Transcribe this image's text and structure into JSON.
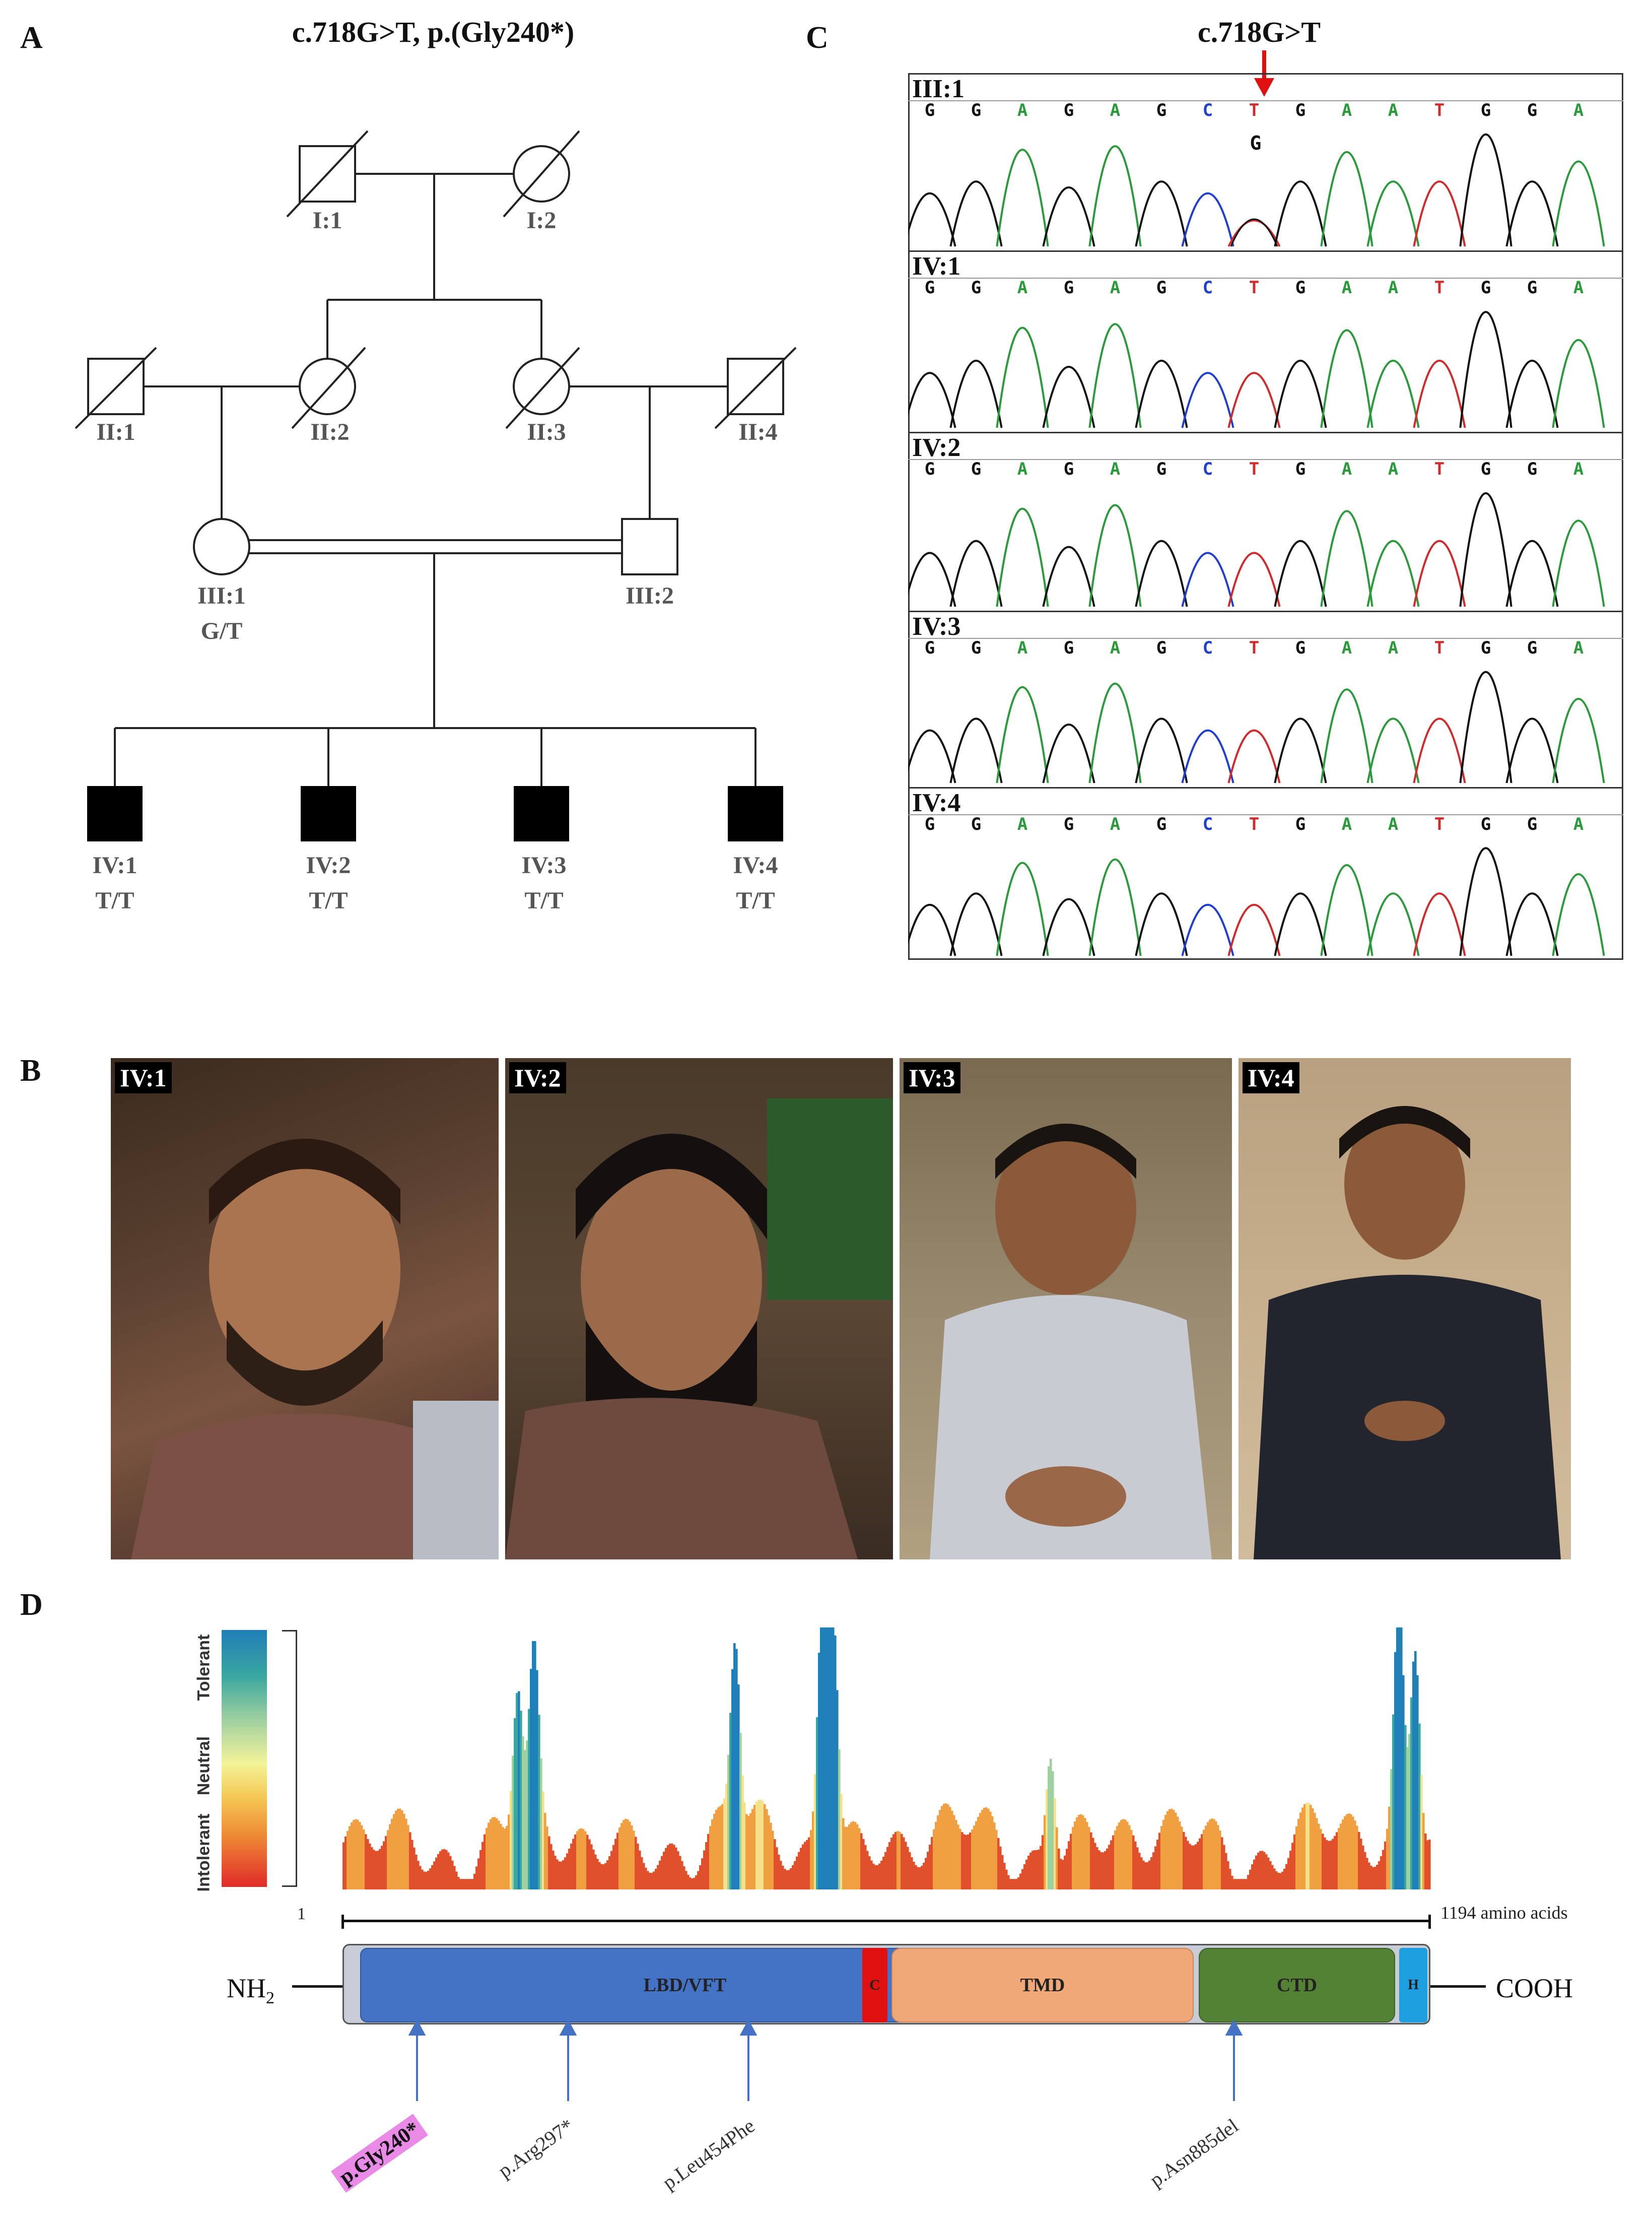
{
  "panels": {
    "a": "A",
    "b": "B",
    "c": "C",
    "d": "D"
  },
  "pedigree": {
    "title": "c.718G>T, p.(Gly240*)",
    "I1": "I:1",
    "I2": "I:2",
    "II1": "II:1",
    "II2": "II:2",
    "II3": "II:3",
    "II4": "II:4",
    "III1": "III:1",
    "III1_gt": "G/T",
    "III2": "III:2",
    "IV1": "IV:1",
    "IV1_gt": "T/T",
    "IV2": "IV:2",
    "IV2_gt": "T/T",
    "IV3": "IV:3",
    "IV3_gt": "T/T",
    "IV4": "IV:4",
    "IV4_gt": "T/T"
  },
  "chromatograms": {
    "title": "c.718G>T",
    "het_base": "G",
    "tracks": [
      {
        "id": "III:1",
        "bases": [
          "G",
          "G",
          "A",
          "G",
          "A",
          "G",
          "C",
          "T",
          "G",
          "A",
          "A",
          "T",
          "G",
          "G",
          "A"
        ]
      },
      {
        "id": "IV:1",
        "bases": [
          "G",
          "G",
          "A",
          "G",
          "A",
          "G",
          "C",
          "T",
          "G",
          "A",
          "A",
          "T",
          "G",
          "G",
          "A"
        ]
      },
      {
        "id": "IV:2",
        "bases": [
          "G",
          "G",
          "A",
          "G",
          "A",
          "G",
          "C",
          "T",
          "G",
          "A",
          "A",
          "T",
          "G",
          "G",
          "A"
        ]
      },
      {
        "id": "IV:3",
        "bases": [
          "G",
          "G",
          "A",
          "G",
          "A",
          "G",
          "C",
          "T",
          "G",
          "A",
          "A",
          "T",
          "G",
          "G",
          "A"
        ]
      },
      {
        "id": "IV:4",
        "bases": [
          "G",
          "G",
          "A",
          "G",
          "A",
          "G",
          "C",
          "T",
          "G",
          "A",
          "A",
          "T",
          "G",
          "G",
          "A"
        ]
      }
    ],
    "base_colors": {
      "A": "#2a9a3a",
      "G": "#111111",
      "C": "#1f3fd0",
      "T": "#d02a2a"
    }
  },
  "photos": {
    "p1": "IV:1",
    "p2": "IV:2",
    "p3": "IV:3",
    "p4": "IV:4"
  },
  "protein": {
    "scale": {
      "tolerant": "Tolerant",
      "neutral": "Neutral",
      "intolerant": "Intolerant"
    },
    "start": "1",
    "end": "1194 amino acids",
    "nterm": "NH",
    "nterm_sub": "2",
    "cterm": "COOH",
    "domains": {
      "lbd": "LBD/VFT",
      "c": "C",
      "tmd": "TMD",
      "ctd": "CTD",
      "h": "H"
    },
    "variants": [
      "p.Gly240*",
      "p.Arg297*",
      "p.Leu454Phe",
      "p.Asn885del"
    ],
    "highlight_color": "#e98ae6"
  }
}
